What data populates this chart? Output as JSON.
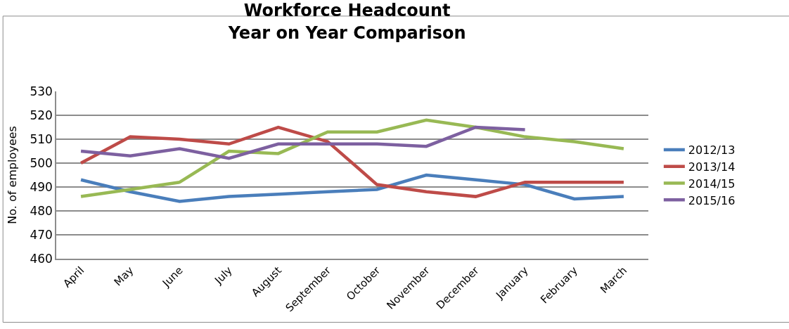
{
  "chart_data": {
    "type": "line",
    "title": "Workforce Headcount\nYear on Year Comparison",
    "ylabel": "No. of employees",
    "categories": [
      "April",
      "May",
      "June",
      "July",
      "August",
      "September",
      "October",
      "November",
      "December",
      "January",
      "February",
      "March"
    ],
    "series": [
      {
        "name": "2012/13",
        "color": "#4a7ebb",
        "values": [
          493,
          488,
          484,
          486,
          487,
          488,
          489,
          495,
          493,
          491,
          485,
          486
        ]
      },
      {
        "name": "2013/14",
        "color": "#be4b48",
        "values": [
          500,
          511,
          510,
          508,
          515,
          509,
          491,
          488,
          486,
          492,
          492,
          492
        ]
      },
      {
        "name": "2014/15",
        "color": "#98b954",
        "values": [
          486,
          489,
          492,
          505,
          504,
          513,
          513,
          518,
          515,
          511,
          509,
          506
        ]
      },
      {
        "name": "2015/16",
        "color": "#7d60a0",
        "values": [
          505,
          503,
          506,
          502,
          508,
          508,
          508,
          507,
          515,
          514,
          null,
          null
        ]
      }
    ],
    "ylim": [
      460,
      530
    ],
    "yticks": [
      460,
      470,
      480,
      490,
      500,
      510,
      520,
      530
    ],
    "grid": "y",
    "legend": "right",
    "marker": "none",
    "line_style": "solid"
  }
}
